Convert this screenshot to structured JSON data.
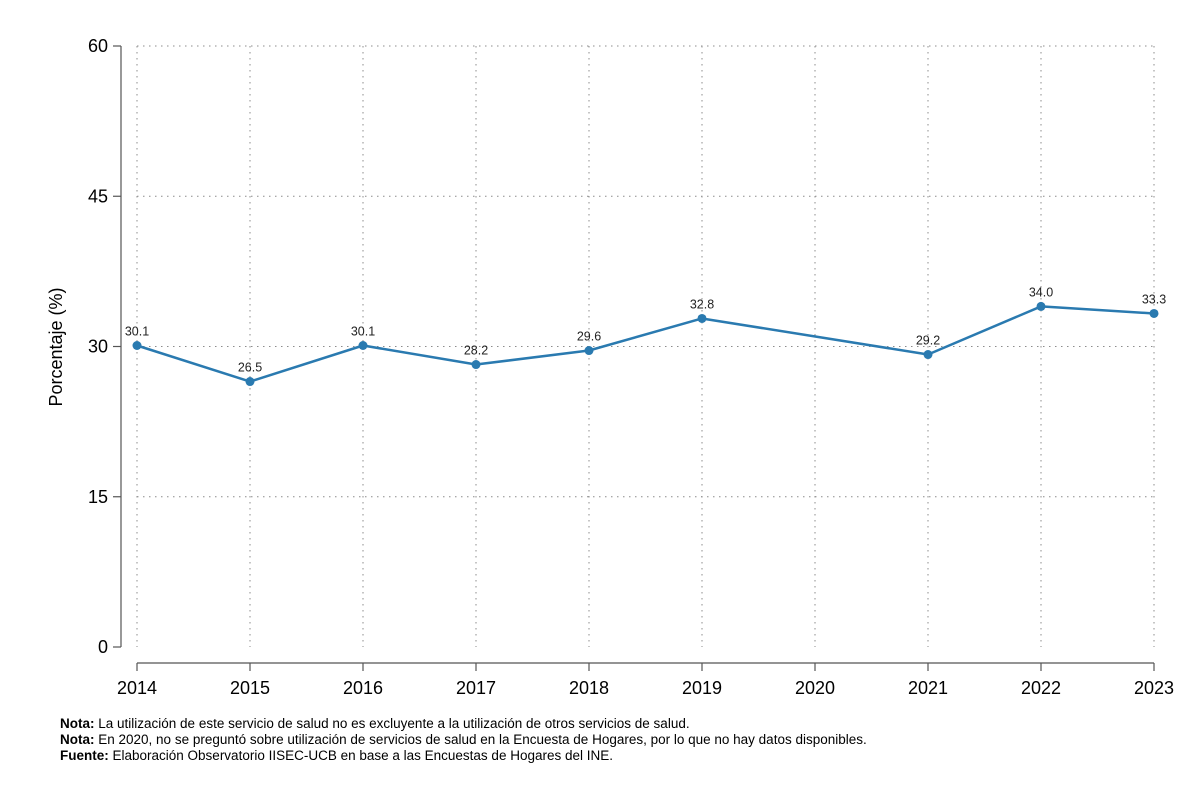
{
  "chart_data": {
    "type": "line",
    "title": "",
    "xlabel": "",
    "ylabel": "Porcentaje (%)",
    "ylim": [
      0,
      60
    ],
    "yticks": [
      0,
      15,
      30,
      45,
      60
    ],
    "x": [
      "2014",
      "2015",
      "2016",
      "2017",
      "2018",
      "2019",
      "2020",
      "2021",
      "2022",
      "2023"
    ],
    "series": [
      {
        "values": [
          30.1,
          26.5,
          30.1,
          28.2,
          29.6,
          32.8,
          null,
          29.2,
          34.0,
          33.3
        ],
        "labels": [
          "30.1",
          "26.5",
          "30.1",
          "28.2",
          "29.6",
          "32.8",
          "",
          "29.2",
          "34.0",
          "33.3"
        ],
        "color": "#2a7ab0"
      }
    ],
    "grid": true
  },
  "notes": [
    {
      "label": "Nota:",
      "text": " La utilización de este servicio de salud no es excluyente a la utilización de otros servicios de salud."
    },
    {
      "label": "Nota:",
      "text": " En 2020, no se preguntó sobre utilización de servicios de salud en la Encuesta de Hogares, por lo que no hay datos disponibles."
    },
    {
      "label": "Fuente:",
      "text": " Elaboración Observatorio IISEC-UCB en base a las Encuestas de Hogares del INE."
    }
  ]
}
